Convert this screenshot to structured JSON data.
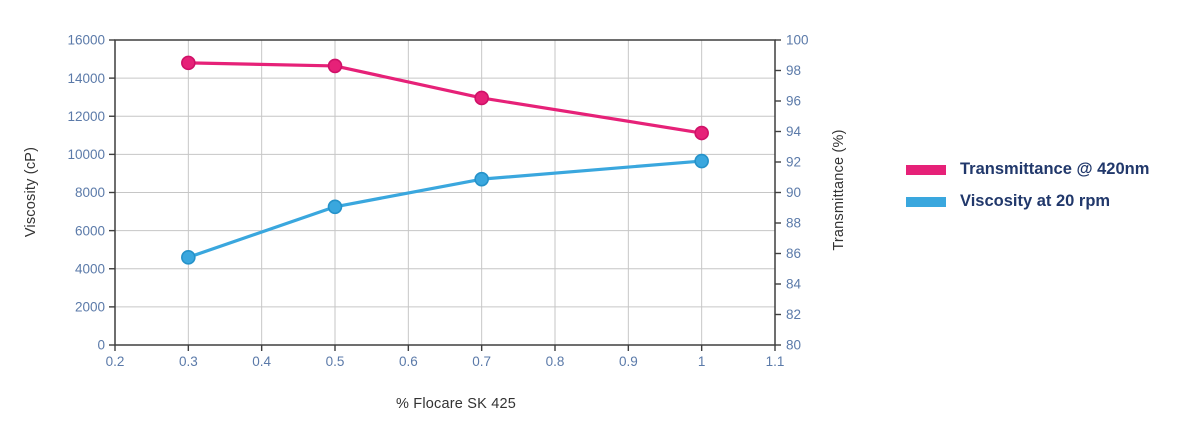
{
  "colors": {
    "background": "#ffffff",
    "axis_line": "#3f3f3f",
    "gridline": "#c6c6c6",
    "tick_label": "#5b7aa9",
    "axis_title": "#333333",
    "legend_text": "#21386b"
  },
  "chart_data": {
    "type": "line",
    "title": "",
    "x": [
      0.3,
      0.5,
      0.7,
      1
    ],
    "series": [
      {
        "name": "Transmittance @ 420nm",
        "yaxis": "right",
        "color": "#e62178",
        "marker_border": "#cf1168",
        "values": [
          98.5,
          98.3,
          96.2,
          93.9
        ]
      },
      {
        "name": "Viscosity at 20 rpm",
        "yaxis": "left",
        "color": "#3aa7de",
        "marker_border": "#2592c9",
        "values": [
          4600,
          7250,
          8700,
          9650
        ]
      }
    ],
    "xlabel": "% Flocare SK 425",
    "ylabel_left": "Viscosity (cP)",
    "ylabel_right": "Transmittance (%)",
    "xlim": [
      0.2,
      1.1
    ],
    "x_ticks": [
      0.2,
      0.3,
      0.4,
      0.5,
      0.6,
      0.7,
      0.8,
      0.9,
      1,
      1.1
    ],
    "ylim_left": [
      0,
      16000
    ],
    "y_ticks_left": [
      0,
      2000,
      4000,
      6000,
      8000,
      10000,
      12000,
      14000,
      16000
    ],
    "ylim_right": [
      80,
      100
    ],
    "y_ticks_right": [
      80,
      82,
      84,
      86,
      88,
      90,
      92,
      94,
      96,
      98,
      100
    ],
    "grid": true,
    "legend_position": "right",
    "marker": "circle"
  }
}
